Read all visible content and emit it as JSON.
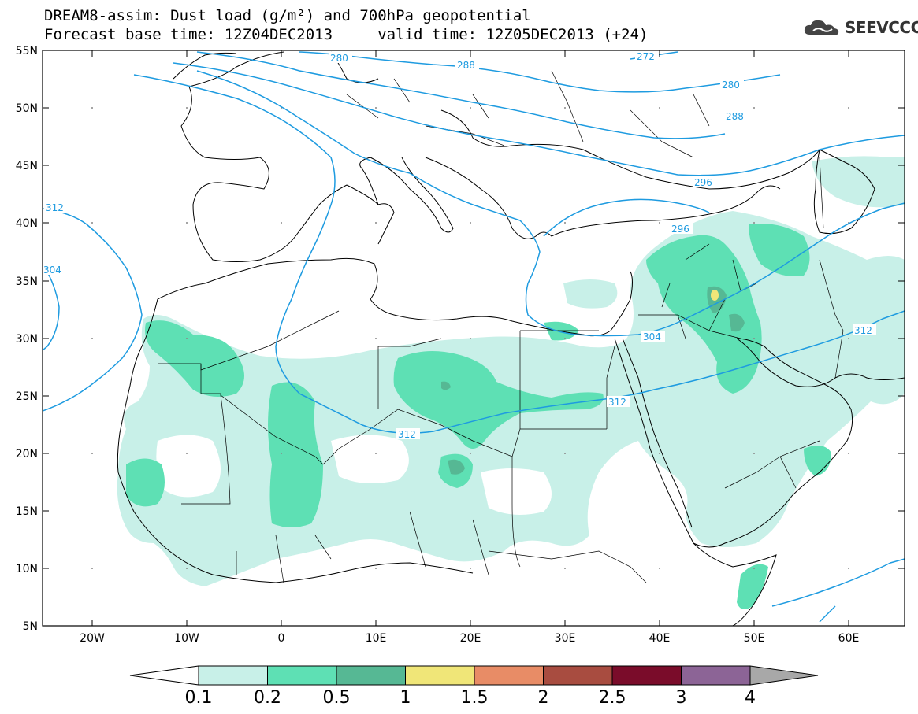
{
  "header": {
    "title_line1": "DREAM8-assim: Dust load (g/m²) and 700hPa geopotential",
    "title_line2": "Forecast base time: 12Z04DEC2013     valid time: 12Z05DEC2013 (+24)"
  },
  "logo": {
    "text": "SEEVCCC",
    "icon": "cloud-logo-icon"
  },
  "axes": {
    "lat_ticks": [
      "55N",
      "50N",
      "45N",
      "40N",
      "35N",
      "30N",
      "25N",
      "20N",
      "15N",
      "10N",
      "5N"
    ],
    "lon_ticks": [
      "20W",
      "10W",
      "0",
      "10E",
      "20E",
      "30E",
      "40E",
      "50E",
      "60E"
    ]
  },
  "contour_labels": [
    "280",
    "288",
    "272",
    "280",
    "288",
    "296",
    "296",
    "312",
    "304",
    "304",
    "312",
    "312",
    "312"
  ],
  "colorbar": {
    "labels": [
      "0.1",
      "0.2",
      "0.5",
      "1",
      "1.5",
      "2",
      "2.5",
      "3",
      "4"
    ],
    "colors": [
      "#c8f0e8",
      "#5ee0b4",
      "#56b894",
      "#f0e678",
      "#e88c66",
      "#a84c40",
      "#7a0c2a",
      "#8c6496",
      "#a8a8a8"
    ]
  },
  "colors": {
    "contour": "#1e9be0",
    "dust_low": "#c8f0e8",
    "dust_mid": "#5ee0b4",
    "dust_high": "#56b894",
    "dust_peak": "#f0e678"
  }
}
